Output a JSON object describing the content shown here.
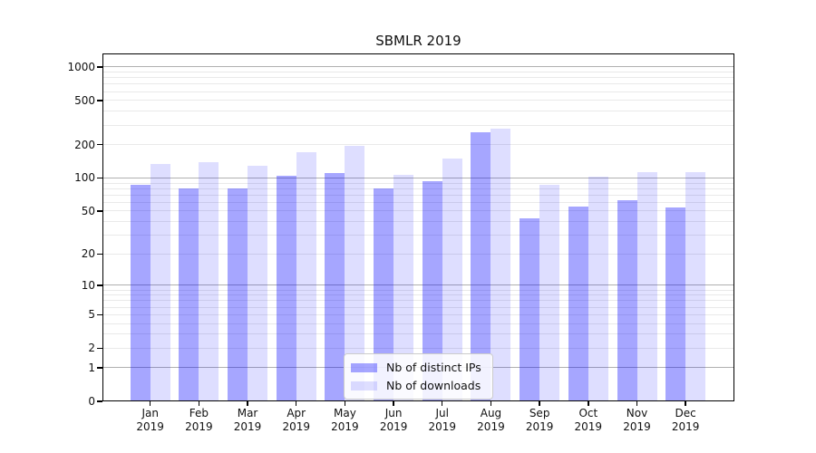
{
  "chart_data": {
    "type": "bar",
    "title": "SBMLR 2019",
    "xlabel": "",
    "ylabel": "",
    "year": "2019",
    "categories": [
      "Jan",
      "Feb",
      "Mar",
      "Apr",
      "May",
      "Jun",
      "Jul",
      "Aug",
      "Sep",
      "Oct",
      "Nov",
      "Dec"
    ],
    "series": [
      {
        "name": "Nb of distinct IPs",
        "color": "rgba(0,0,255,0.35)",
        "values": [
          86,
          81,
          81,
          104,
          110,
          80,
          93,
          258,
          43,
          55,
          63,
          54
        ]
      },
      {
        "name": "Nb of downloads",
        "color": "rgba(0,0,255,0.13)",
        "values": [
          135,
          138,
          130,
          170,
          197,
          107,
          150,
          279,
          87,
          103,
          113,
          113
        ]
      }
    ],
    "yscale": "log1p",
    "ylim": [
      0,
      1320
    ],
    "yticks": [
      1000,
      500,
      200,
      100,
      50,
      20,
      10,
      5,
      2,
      1,
      0
    ],
    "grid": {
      "on": true,
      "major_color": "#b0b0b0",
      "minor_color": "#e9e9e9"
    },
    "legend_position": "lower center"
  }
}
